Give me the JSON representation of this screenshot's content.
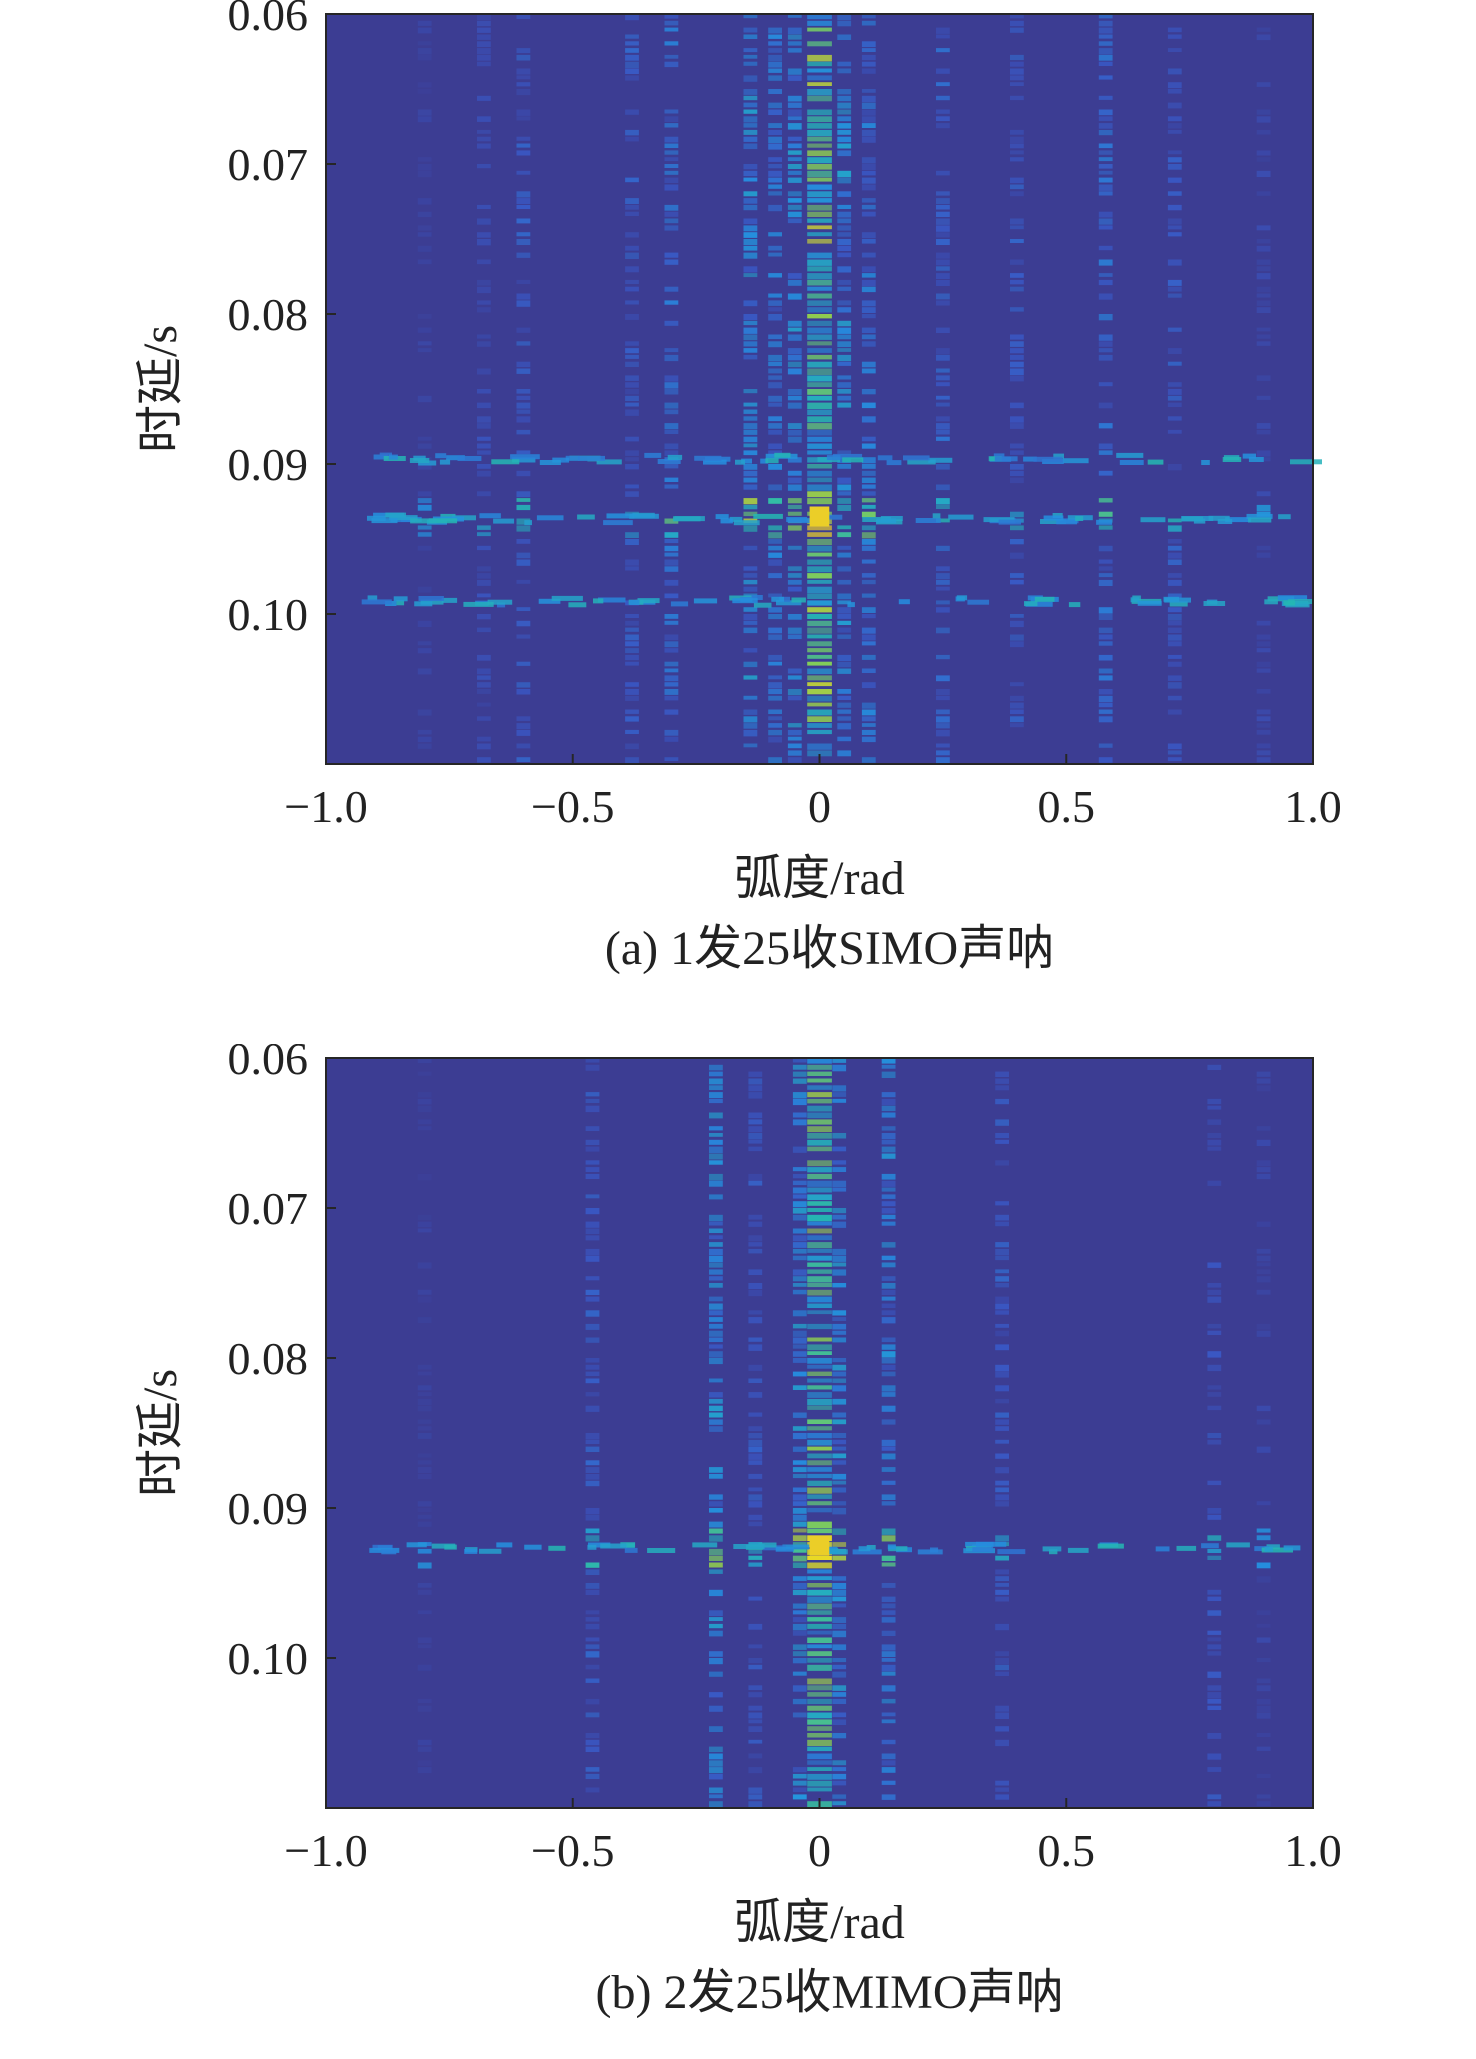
{
  "chart_data": [
    {
      "type": "heatmap",
      "caption": "(a) 1发25收SIMO声呐",
      "xlabel": "弧度/rad",
      "ylabel": "时延/s",
      "xlim": [
        -1.0,
        1.0
      ],
      "ylim": [
        0.06,
        0.11
      ],
      "y_inverted": true,
      "xticks": [
        -1.0,
        -0.5,
        0,
        0.5,
        1.0
      ],
      "xtick_labels": [
        "−1.0",
        "−0.5",
        "0",
        "0.5",
        "1.0"
      ],
      "yticks": [
        0.06,
        0.07,
        0.08,
        0.09,
        0.1
      ],
      "ytick_labels": [
        "0.06",
        "0.07",
        "0.08",
        "0.09",
        "0.10"
      ],
      "grid": false,
      "colormap": "parula",
      "colors": {
        "background": "#3c3d93",
        "low": "#3c4a9e",
        "mid": "#2b9ad6",
        "high": "#8fd74a",
        "peak": "#f3b92d"
      },
      "beam_columns": [
        {
          "x": 0.0,
          "intensity": 0.95
        },
        {
          "x": -0.05,
          "intensity": 0.55
        },
        {
          "x": 0.05,
          "intensity": 0.55
        },
        {
          "x": -0.14,
          "intensity": 0.55
        },
        {
          "x": -0.09,
          "intensity": 0.45
        },
        {
          "x": 0.1,
          "intensity": 0.45
        },
        {
          "x": -0.3,
          "intensity": 0.4
        },
        {
          "x": -0.38,
          "intensity": 0.3
        },
        {
          "x": -0.6,
          "intensity": 0.3
        },
        {
          "x": 0.25,
          "intensity": 0.35
        },
        {
          "x": 0.4,
          "intensity": 0.3
        },
        {
          "x": 0.58,
          "intensity": 0.4
        },
        {
          "x": 0.72,
          "intensity": 0.3
        },
        {
          "x": 0.9,
          "intensity": 0.15
        },
        {
          "x": -0.8,
          "intensity": 0.1
        },
        {
          "x": -0.68,
          "intensity": 0.2
        }
      ],
      "peak_delay": 0.0935,
      "secondary_delays": [
        0.0895,
        0.0935,
        0.099
      ],
      "peak_value": 1.0
    },
    {
      "type": "heatmap",
      "caption": "(b) 2发25收MIMO声呐",
      "xlabel": "弧度/rad",
      "ylabel": "时延/s",
      "xlim": [
        -1.0,
        1.0
      ],
      "ylim": [
        0.06,
        0.11
      ],
      "y_inverted": true,
      "xticks": [
        -1.0,
        -0.5,
        0,
        0.5,
        1.0
      ],
      "xtick_labels": [
        "−1.0",
        "−0.5",
        "0",
        "0.5",
        "1.0"
      ],
      "yticks": [
        0.06,
        0.07,
        0.08,
        0.09,
        0.1
      ],
      "ytick_labels": [
        "0.06",
        "0.07",
        "0.08",
        "0.09",
        "0.10"
      ],
      "grid": false,
      "colormap": "parula",
      "colors": {
        "background": "#3c3d93",
        "low": "#3c4a9e",
        "mid": "#2b9ad6",
        "high": "#8fd74a",
        "peak": "#f3b92d"
      },
      "beam_columns": [
        {
          "x": 0.0,
          "intensity": 0.9
        },
        {
          "x": -0.04,
          "intensity": 0.55
        },
        {
          "x": 0.04,
          "intensity": 0.55
        },
        {
          "x": 0.14,
          "intensity": 0.5
        },
        {
          "x": -0.21,
          "intensity": 0.55
        },
        {
          "x": -0.13,
          "intensity": 0.3
        },
        {
          "x": -0.46,
          "intensity": 0.3
        },
        {
          "x": 0.37,
          "intensity": 0.3
        },
        {
          "x": 0.8,
          "intensity": 0.25
        },
        {
          "x": 0.9,
          "intensity": 0.12
        },
        {
          "x": -0.8,
          "intensity": 0.08
        }
      ],
      "peak_delay": 0.0925,
      "secondary_delays": [
        0.0925
      ],
      "peak_value": 1.0
    }
  ]
}
